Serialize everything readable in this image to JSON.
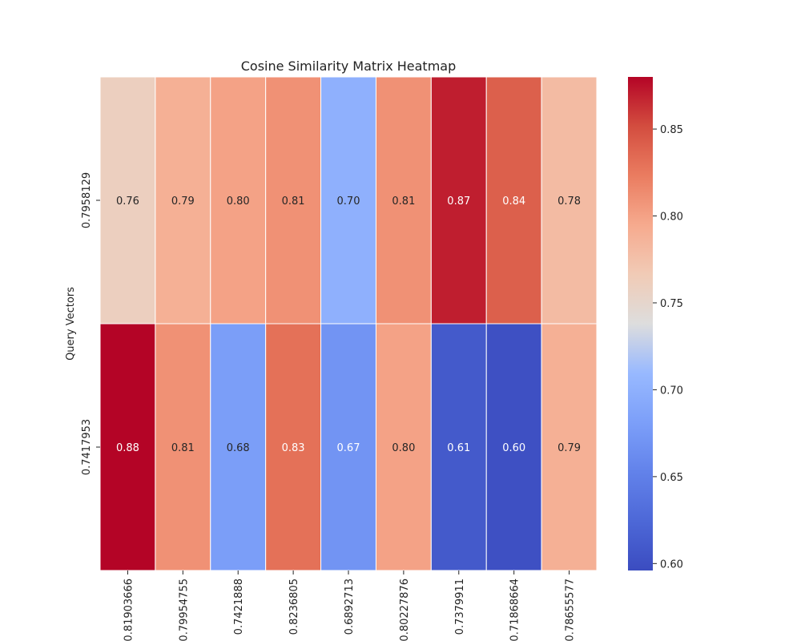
{
  "chart_data": {
    "type": "heatmap",
    "title": "Cosine Similarity Matrix Heatmap",
    "xlabel": "",
    "ylabel": "Query Vectors",
    "x_categories": [
      "0.81903666",
      "0.79954755",
      "0.7421888",
      "0.8236805",
      "0.6892713",
      "0.80227876",
      "0.7379911",
      "0.71868664",
      "0.78655577"
    ],
    "y_categories": [
      "0.7958129",
      "0.7417953"
    ],
    "values": [
      [
        0.76,
        0.79,
        0.8,
        0.81,
        0.7,
        0.81,
        0.87,
        0.84,
        0.78
      ],
      [
        0.88,
        0.81,
        0.68,
        0.83,
        0.67,
        0.8,
        0.61,
        0.6,
        0.79
      ]
    ],
    "colormap": "coolwarm",
    "colorbar": {
      "min": 0.596,
      "max": 0.88,
      "ticks": [
        0.6,
        0.65,
        0.7,
        0.75,
        0.8,
        0.85
      ]
    }
  }
}
